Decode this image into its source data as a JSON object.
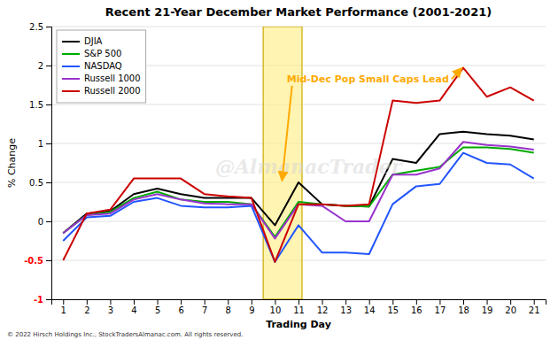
{
  "chart_data": {
    "type": "line",
    "title": "Recent 21-Year December Market Performance (2001-2021)",
    "xlabel": "Trading Day",
    "ylabel": "% Change",
    "x": [
      1,
      2,
      3,
      4,
      5,
      6,
      7,
      8,
      9,
      10,
      11,
      12,
      13,
      14,
      15,
      16,
      17,
      18,
      19,
      20,
      21
    ],
    "xlim": [
      0.5,
      21.5
    ],
    "xticks": [
      1,
      2,
      3,
      4,
      5,
      6,
      7,
      8,
      9,
      10,
      11,
      12,
      13,
      14,
      15,
      16,
      17,
      18,
      19,
      20,
      21
    ],
    "ylim": [
      -1.0,
      2.5
    ],
    "yticks": [
      -1,
      -0.5,
      0,
      0.5,
      1,
      1.5,
      2,
      2.5
    ],
    "grid": true,
    "legend": "upper left",
    "series": [
      {
        "name": "DJIA",
        "color": "#000000",
        "values": [
          -0.15,
          0.1,
          0.13,
          0.35,
          0.42,
          0.35,
          0.3,
          0.3,
          0.3,
          -0.05,
          0.5,
          0.22,
          0.2,
          0.19,
          0.8,
          0.75,
          1.12,
          1.15,
          1.12,
          1.1,
          1.05
        ]
      },
      {
        "name": "S&P 500",
        "color": "#00aa00",
        "values": [
          -0.15,
          0.08,
          0.12,
          0.3,
          0.38,
          0.28,
          0.25,
          0.25,
          0.22,
          -0.2,
          0.25,
          0.22,
          0.2,
          0.19,
          0.6,
          0.65,
          0.7,
          0.95,
          0.95,
          0.93,
          0.88
        ]
      },
      {
        "name": "NASDAQ",
        "color": "#2255ff",
        "values": [
          -0.25,
          0.05,
          0.07,
          0.25,
          0.3,
          0.2,
          0.18,
          0.18,
          0.2,
          -0.52,
          -0.05,
          -0.4,
          -0.4,
          -0.42,
          0.22,
          0.45,
          0.48,
          0.88,
          0.75,
          0.73,
          0.55
        ]
      },
      {
        "name": "Russell 1000",
        "color": "#9933cc",
        "values": [
          -0.15,
          0.08,
          0.1,
          0.28,
          0.35,
          0.28,
          0.23,
          0.22,
          0.22,
          -0.22,
          0.22,
          0.2,
          0.0,
          0.0,
          0.6,
          0.6,
          0.68,
          1.02,
          0.98,
          0.96,
          0.92
        ]
      },
      {
        "name": "Russell 2000",
        "color": "#cc0000",
        "values": [
          -0.5,
          0.1,
          0.15,
          0.55,
          0.55,
          0.55,
          0.35,
          0.32,
          0.3,
          -0.52,
          0.22,
          0.22,
          0.2,
          0.22,
          1.55,
          1.52,
          1.55,
          1.97,
          1.6,
          1.72,
          1.55
        ]
      }
    ],
    "highlight": {
      "x": [
        9.5,
        11.15
      ],
      "color": "#ffee88"
    },
    "annotations": [
      {
        "text": "Mid-Dec Pop Small Caps Lead",
        "x": 10.5,
        "y": 1.82,
        "color": "#ffaa00",
        "arrows": [
          [
            10.3,
            0.52
          ],
          [
            17.95,
            1.97
          ]
        ]
      }
    ],
    "watermark": "@AlmanacTrader",
    "footnote": "© 2022 Hirsch Holdings Inc., StockTradersAlmanac.com. All rights reserved."
  }
}
